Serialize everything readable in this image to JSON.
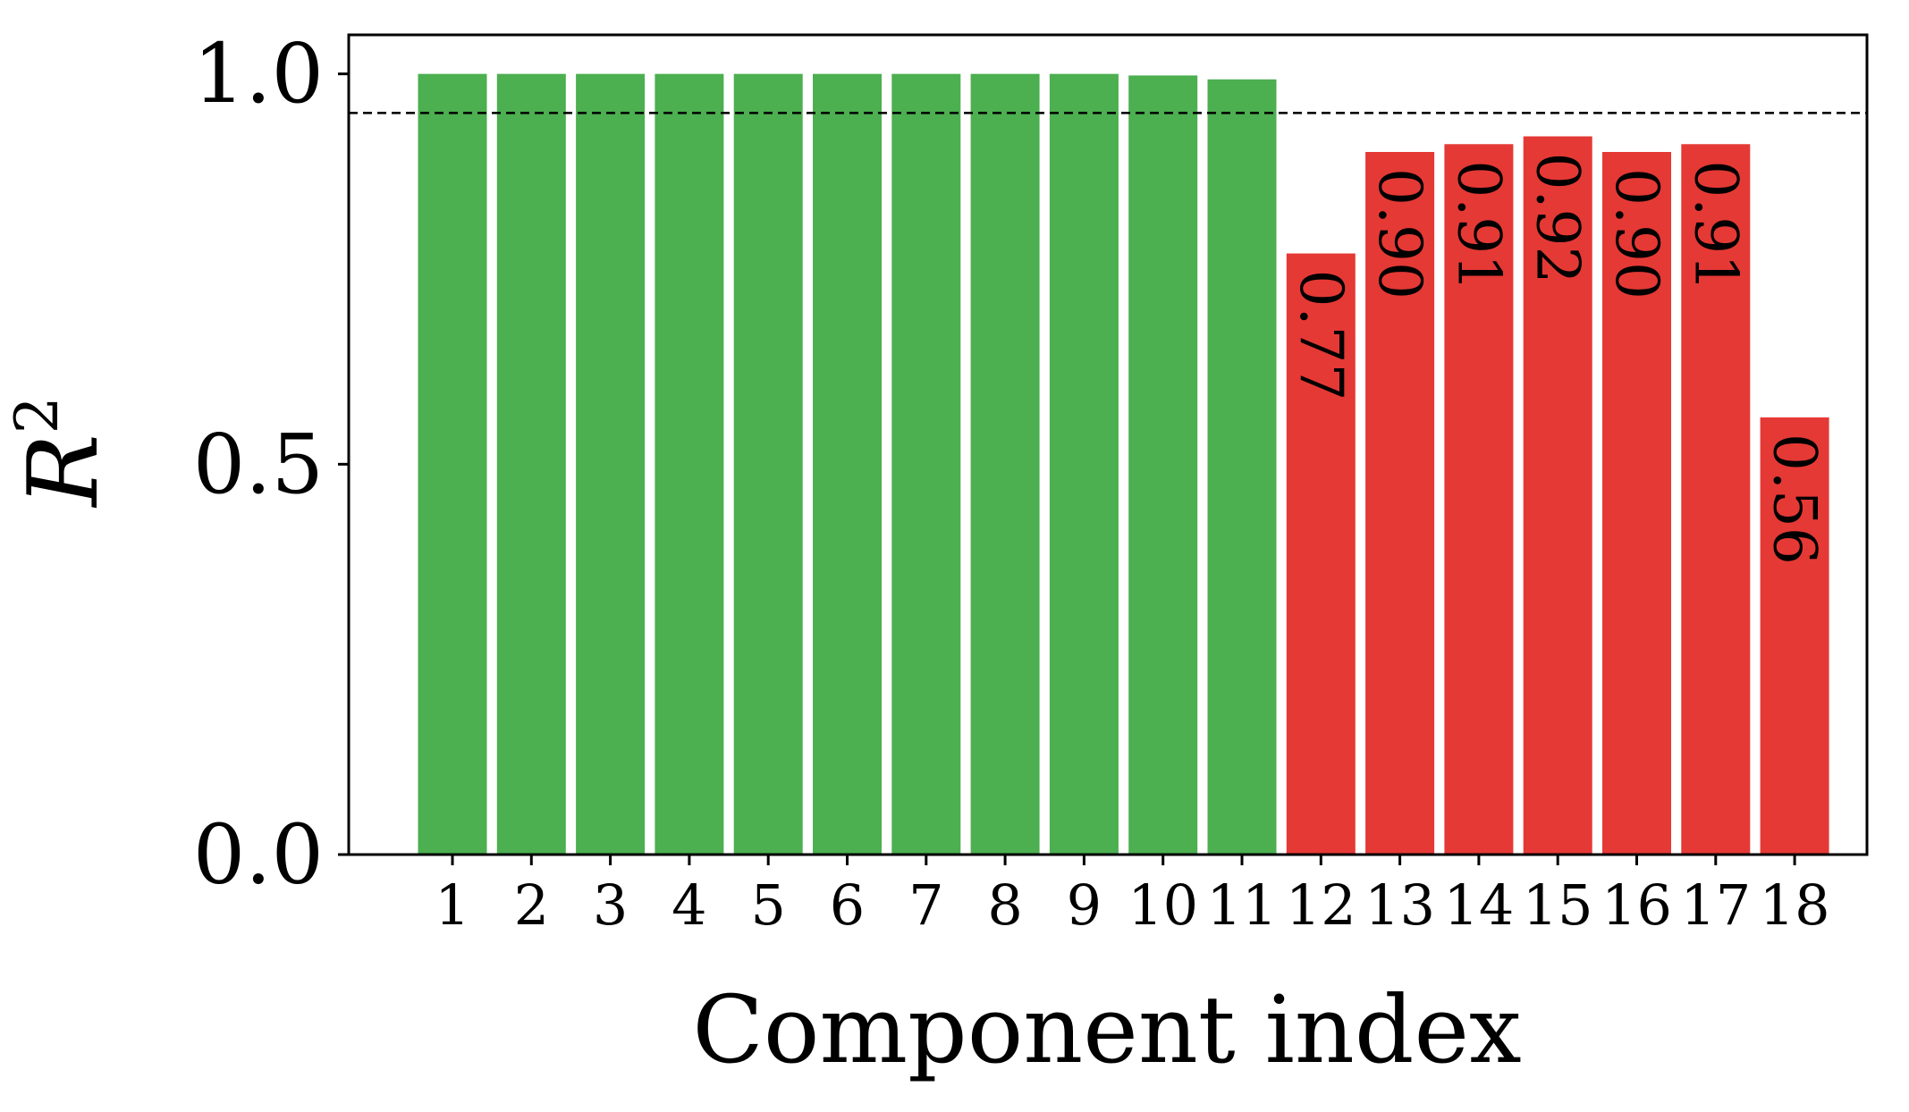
{
  "chart_data": {
    "type": "bar",
    "categories": [
      "1",
      "2",
      "3",
      "4",
      "5",
      "6",
      "7",
      "8",
      "9",
      "10",
      "11",
      "12",
      "13",
      "14",
      "15",
      "16",
      "17",
      "18"
    ],
    "values": [
      1.0,
      1.0,
      1.0,
      1.0,
      1.0,
      1.0,
      1.0,
      1.0,
      1.0,
      0.998,
      0.993,
      0.77,
      0.9,
      0.91,
      0.92,
      0.9,
      0.91,
      0.56
    ],
    "data_labels": [
      "",
      "",
      "",
      "",
      "",
      "",
      "",
      "",
      "",
      "",
      "",
      "0.77",
      "0.90",
      "0.91",
      "0.92",
      "0.90",
      "0.91",
      "0.56"
    ],
    "bar_colors": [
      "#4caf50",
      "#4caf50",
      "#4caf50",
      "#4caf50",
      "#4caf50",
      "#4caf50",
      "#4caf50",
      "#4caf50",
      "#4caf50",
      "#4caf50",
      "#4caf50",
      "#e53935",
      "#e53935",
      "#e53935",
      "#e53935",
      "#e53935",
      "#e53935",
      "#e53935"
    ],
    "colors": {
      "pass": "#4caf50",
      "fail": "#e53935"
    },
    "threshold": 0.95,
    "threshold_style": "dashed",
    "xlabel": "Component index",
    "ylabel": "R",
    "ylabel_superscript": "2",
    "yticks": [
      0.0,
      0.5,
      1.0
    ],
    "ytick_labels": [
      "0.0",
      "0.5",
      "1.0"
    ],
    "ylim": [
      0,
      1.05
    ],
    "grid": false,
    "legend": "none"
  }
}
